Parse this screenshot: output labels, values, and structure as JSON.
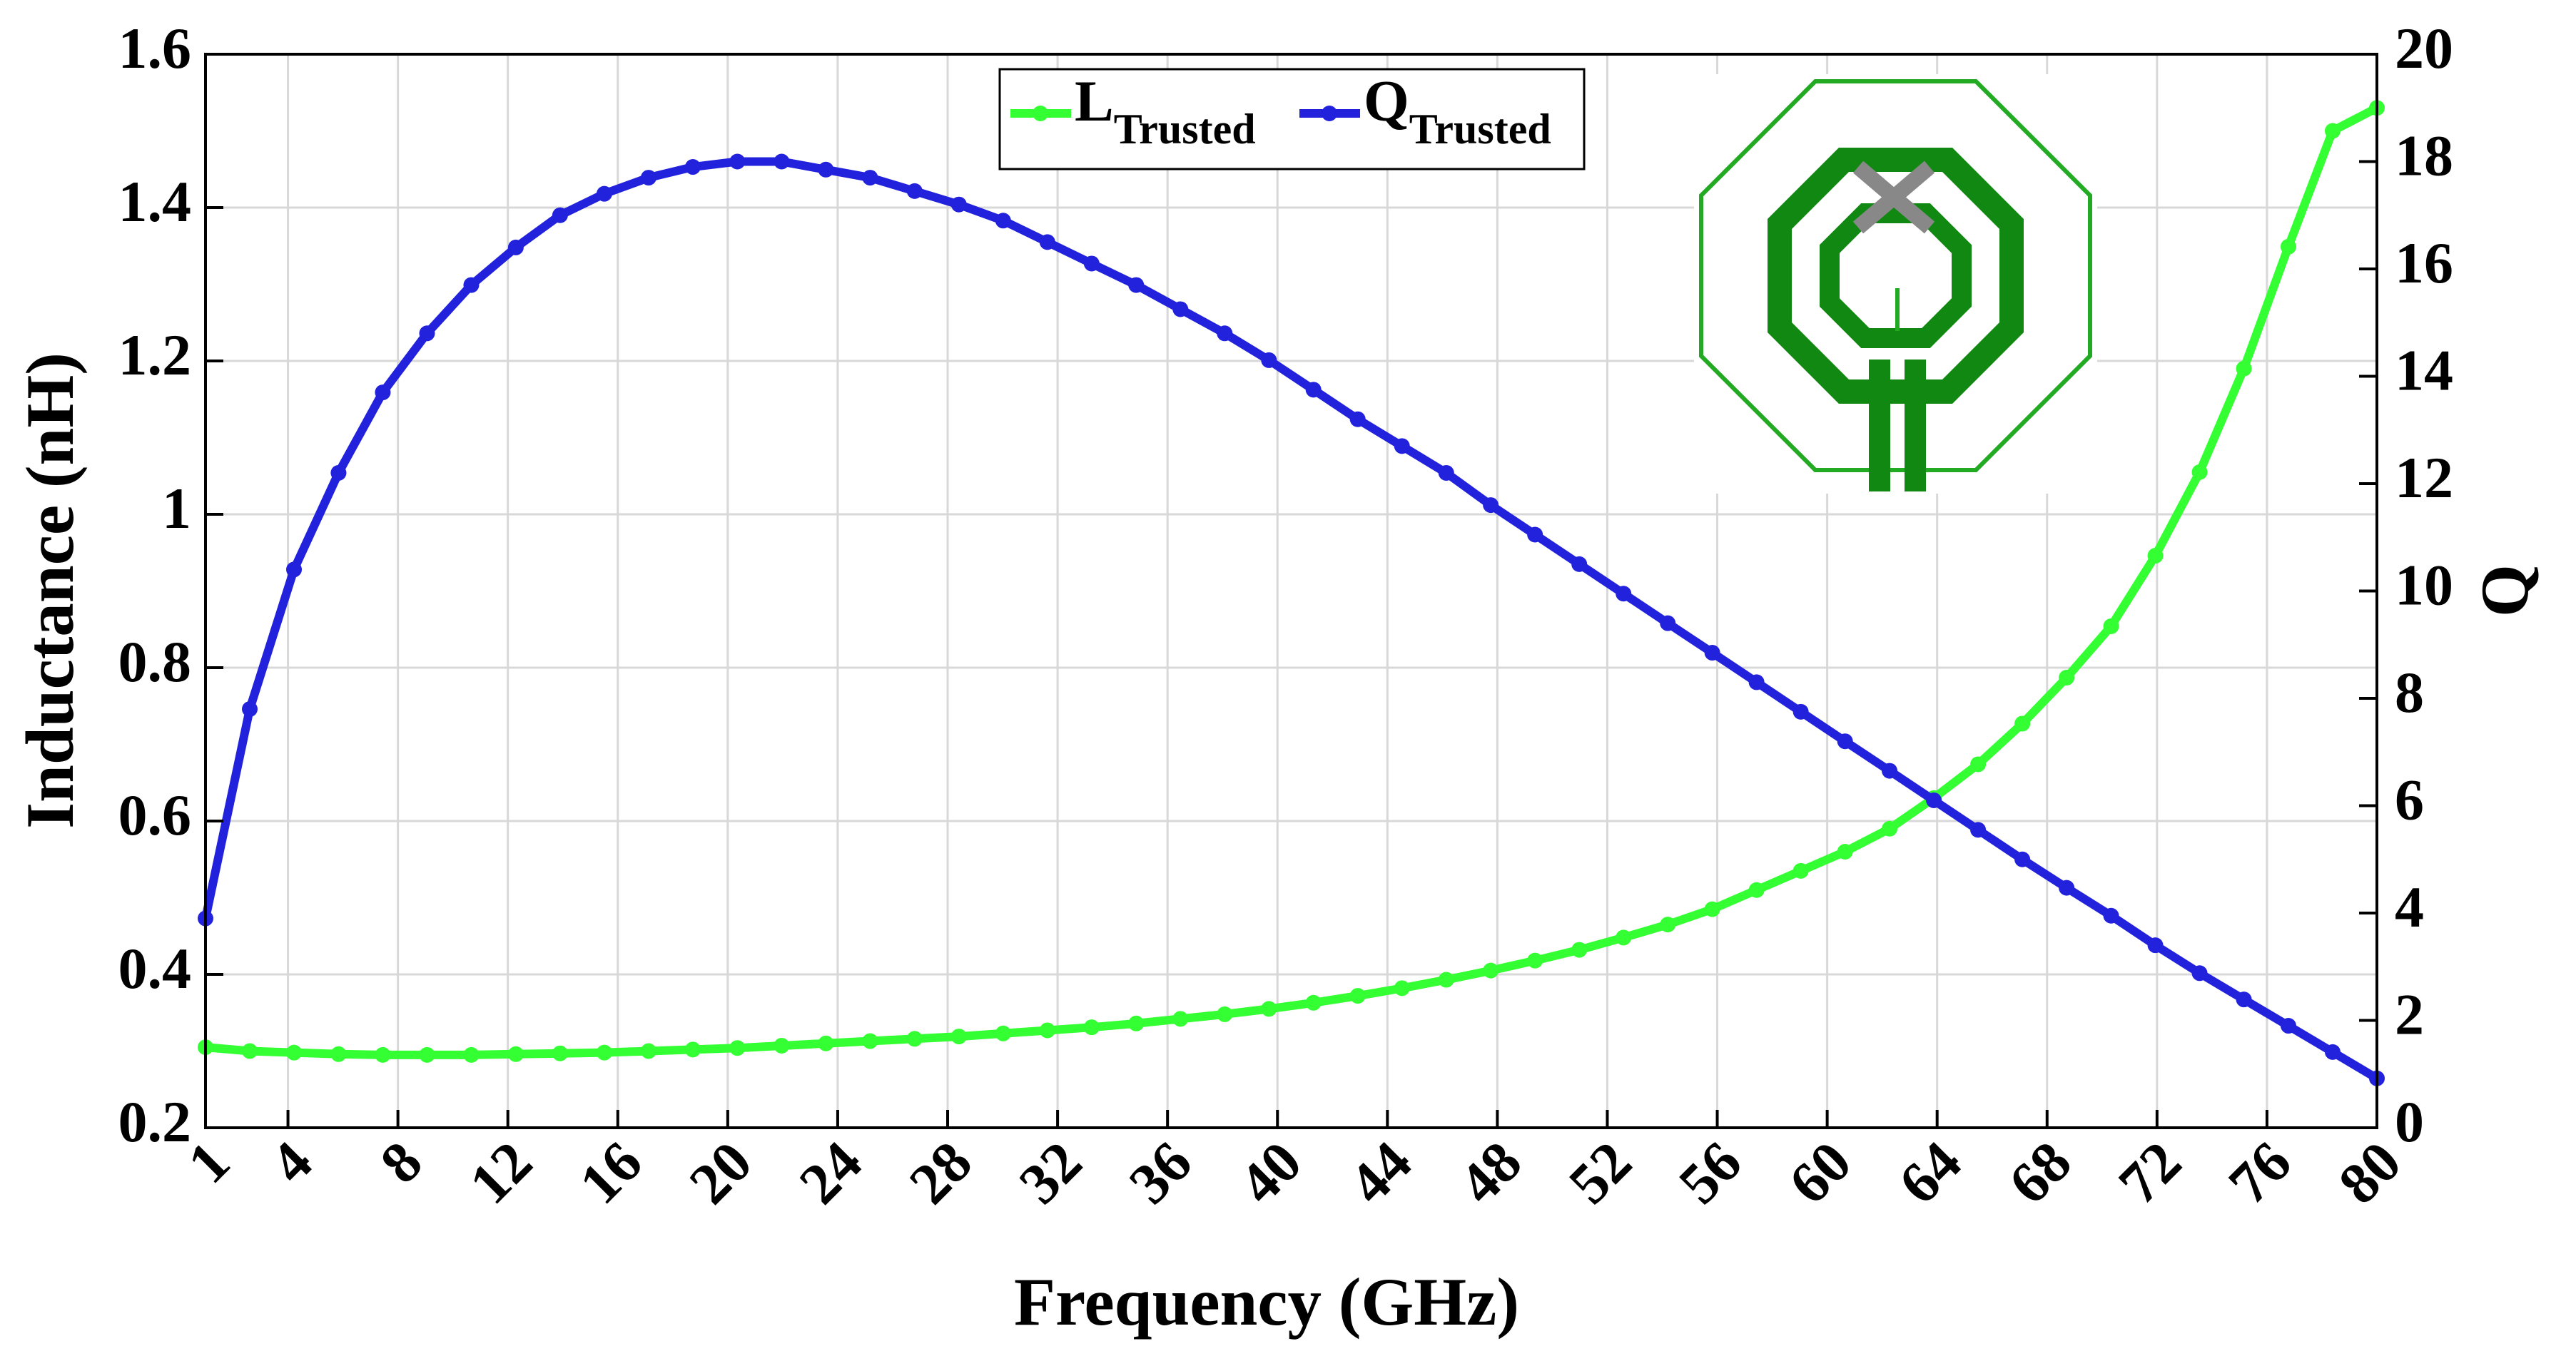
{
  "chart_data": {
    "type": "line",
    "x_label": "Frequency (GHz)",
    "y_label": "Inductance (nH)",
    "y2_label": "Q",
    "x": [
      1,
      2.61,
      4.22,
      5.84,
      7.45,
      9.06,
      10.67,
      12.29,
      13.9,
      15.51,
      17.12,
      18.73,
      20.35,
      21.96,
      23.57,
      25.18,
      26.8,
      28.41,
      30.02,
      31.63,
      33.24,
      34.86,
      36.47,
      38.08,
      39.69,
      41.31,
      42.92,
      44.53,
      46.14,
      47.76,
      49.37,
      50.98,
      52.59,
      54.2,
      55.82,
      57.43,
      59.04,
      60.65,
      62.27,
      63.88,
      65.49,
      67.1,
      68.71,
      70.33,
      71.94,
      73.55,
      75.16,
      76.78,
      78.39,
      80
    ],
    "series": [
      {
        "name": "L",
        "subscript": "Trusted",
        "color": "#33ff33",
        "values": [
          0.305,
          0.3,
          0.298,
          0.296,
          0.295,
          0.295,
          0.295,
          0.296,
          0.297,
          0.298,
          0.3,
          0.302,
          0.304,
          0.307,
          0.31,
          0.313,
          0.316,
          0.319,
          0.323,
          0.327,
          0.331,
          0.336,
          0.342,
          0.348,
          0.355,
          0.363,
          0.372,
          0.382,
          0.393,
          0.405,
          0.418,
          0.432,
          0.448,
          0.465,
          0.485,
          0.51,
          0.535,
          0.56,
          0.59,
          0.63,
          0.674,
          0.727,
          0.787,
          0.854,
          0.946,
          1.055,
          1.19,
          1.349,
          1.5,
          1.53
        ]
      },
      {
        "name": "Q",
        "subscript": "Trusted",
        "color": "#2222dd",
        "axis": "y2",
        "values": [
          3.9,
          7.8,
          10.4,
          12.2,
          13.7,
          14.8,
          15.7,
          16.4,
          17.0,
          17.4,
          17.7,
          17.9,
          18.0,
          18.0,
          17.85,
          17.7,
          17.45,
          17.2,
          16.9,
          16.5,
          16.1,
          15.7,
          15.25,
          14.8,
          14.3,
          13.75,
          13.2,
          12.7,
          12.2,
          11.6,
          11.05,
          10.5,
          9.95,
          9.4,
          8.85,
          8.3,
          7.75,
          7.2,
          6.65,
          6.1,
          5.55,
          5.0,
          4.47,
          3.95,
          3.4,
          2.88,
          2.39,
          1.9,
          1.41,
          0.92
        ]
      }
    ],
    "xlim": [
      1,
      80
    ],
    "xticks": [
      1,
      4,
      8,
      12,
      16,
      20,
      24,
      28,
      32,
      36,
      40,
      44,
      48,
      52,
      56,
      60,
      64,
      68,
      72,
      76,
      80
    ],
    "ylim": [
      0.2,
      1.6
    ],
    "yticks": [
      0.2,
      0.4,
      0.6,
      0.8,
      1,
      1.2,
      1.4,
      1.6
    ],
    "y2lim": [
      0,
      20
    ],
    "y2ticks": [
      0,
      2,
      4,
      6,
      8,
      10,
      12,
      14,
      16,
      18,
      20
    ],
    "grid": true,
    "legend": "top"
  }
}
